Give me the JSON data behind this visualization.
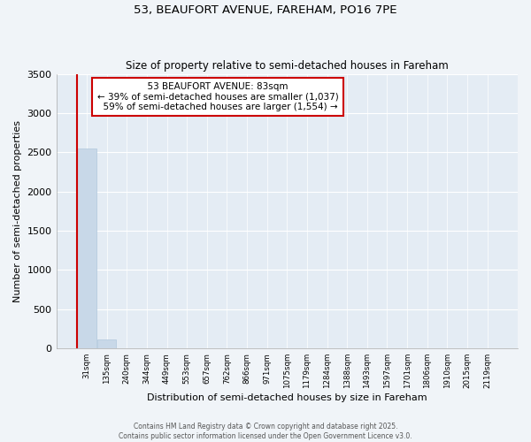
{
  "title": "53, BEAUFORT AVENUE, FAREHAM, PO16 7PE",
  "subtitle": "Size of property relative to semi-detached houses in Fareham",
  "xlabel": "Distribution of semi-detached houses by size in Fareham",
  "ylabel": "Number of semi-detached properties",
  "bin_labels": [
    "31sqm",
    "135sqm",
    "240sqm",
    "344sqm",
    "449sqm",
    "553sqm",
    "657sqm",
    "762sqm",
    "866sqm",
    "971sqm",
    "1075sqm",
    "1179sqm",
    "1284sqm",
    "1388sqm",
    "1493sqm",
    "1597sqm",
    "1701sqm",
    "1806sqm",
    "1910sqm",
    "2015sqm",
    "2119sqm"
  ],
  "bar_values": [
    2550,
    120,
    0,
    0,
    0,
    0,
    0,
    0,
    0,
    0,
    0,
    0,
    0,
    0,
    0,
    0,
    0,
    0,
    0,
    0,
    0
  ],
  "bar_color": "#c8d8e8",
  "bar_edge_color": "#b0c8dc",
  "property_bin_index": 0,
  "property_label": "53 BEAUFORT AVENUE: 83sqm",
  "property_pct_smaller": 39,
  "property_smaller_count": 1037,
  "property_pct_larger": 59,
  "property_larger_count": 1554,
  "vline_color": "#cc0000",
  "annotation_box_color": "#cc0000",
  "ylim": [
    0,
    3500
  ],
  "yticks": [
    0,
    500,
    1000,
    1500,
    2000,
    2500,
    3000,
    3500
  ],
  "footer_line1": "Contains HM Land Registry data © Crown copyright and database right 2025.",
  "footer_line2": "Contains public sector information licensed under the Open Government Licence v3.0.",
  "fig_bg_color": "#f0f4f8",
  "plot_bg_color": "#e4ecf4"
}
